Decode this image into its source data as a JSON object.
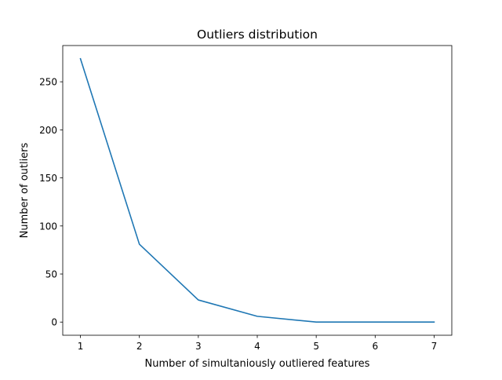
{
  "chart_data": {
    "type": "line",
    "title": "Outliers distribution",
    "xlabel": "Number of simultaniously outliered features",
    "ylabel": "Number of outliers",
    "x": [
      1,
      2,
      3,
      4,
      5,
      6,
      7
    ],
    "series": [
      {
        "values": [
          274,
          81,
          23,
          6,
          0,
          0,
          0
        ],
        "color": "#1f77b4"
      }
    ],
    "xticks": [
      "1",
      "2",
      "3",
      "4",
      "5",
      "6",
      "7"
    ],
    "yticks": [
      "0",
      "50",
      "100",
      "150",
      "200",
      "250"
    ],
    "xlim": [
      0.7,
      7.3
    ],
    "ylim": [
      -13.7,
      287.7
    ],
    "grid": false,
    "legend": "none"
  }
}
